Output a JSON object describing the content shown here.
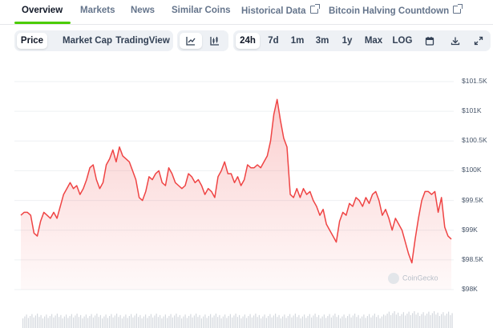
{
  "tabs": [
    {
      "label": "Overview",
      "active": true
    },
    {
      "label": "Markets"
    },
    {
      "label": "News"
    },
    {
      "label": "Similar Coins"
    },
    {
      "label": "Historical Data",
      "external": true
    },
    {
      "label": "Bitcoin Halving Countdown",
      "external": true
    }
  ],
  "toolbar": {
    "chart_types": [
      {
        "label": "Price",
        "active": true
      },
      {
        "label": "Market Cap"
      },
      {
        "label": "TradingView"
      }
    ],
    "view_icons": [
      "line-chart-icon",
      "candlestick-chart-icon"
    ],
    "ranges": [
      {
        "label": "24h",
        "active": true
      },
      {
        "label": "7d"
      },
      {
        "label": "1m"
      },
      {
        "label": "3m"
      },
      {
        "label": "1y"
      },
      {
        "label": "Max"
      },
      {
        "label": "LOG"
      }
    ],
    "action_icons": [
      "calendar-icon",
      "download-icon",
      "expand-icon"
    ]
  },
  "watermark": "CoinGecko",
  "colors": {
    "line": "#ef4444",
    "accent": "#4bcc00"
  },
  "chart_data": {
    "type": "area",
    "y_tick_labels": [
      "$101.5K",
      "$101K",
      "$100.5K",
      "$100K",
      "$99.5K",
      "$99K",
      "$98.5K",
      "$98K"
    ],
    "y_ticks": [
      101500,
      101000,
      100500,
      100000,
      99500,
      99000,
      98500,
      98000
    ],
    "ylim": [
      98000,
      101500
    ],
    "values": [
      99250,
      99300,
      99300,
      99250,
      98950,
      98900,
      99150,
      99300,
      99250,
      99200,
      99300,
      99200,
      99400,
      99600,
      99700,
      99800,
      99700,
      99750,
      99600,
      99700,
      99850,
      100050,
      100100,
      99850,
      99700,
      99800,
      100100,
      100200,
      100350,
      100150,
      100400,
      100250,
      100200,
      100150,
      100000,
      99850,
      99550,
      99500,
      99650,
      99900,
      99850,
      99950,
      100000,
      99800,
      99750,
      100050,
      99950,
      99800,
      99750,
      99700,
      99750,
      99950,
      99900,
      99800,
      99850,
      99750,
      99600,
      99700,
      99650,
      99550,
      99900,
      100000,
      100150,
      99950,
      99950,
      99800,
      99900,
      99750,
      99850,
      100100,
      100050,
      100050,
      100100,
      100050,
      100150,
      100250,
      100500,
      100950,
      101200,
      100850,
      100550,
      100400,
      99600,
      99550,
      99700,
      99550,
      99700,
      99600,
      99650,
      99500,
      99400,
      99250,
      99350,
      99100,
      99000,
      98900,
      98800,
      99150,
      99300,
      99250,
      99450,
      99400,
      99550,
      99500,
      99400,
      99550,
      99450,
      99600,
      99650,
      99500,
      99250,
      99350,
      99200,
      99000,
      99200,
      99100,
      99000,
      98800,
      98600,
      98450,
      98850,
      99200,
      99500,
      99650,
      99650,
      99600,
      99650,
      99300,
      99550,
      99050,
      98900,
      98850
    ],
    "grid": true
  }
}
